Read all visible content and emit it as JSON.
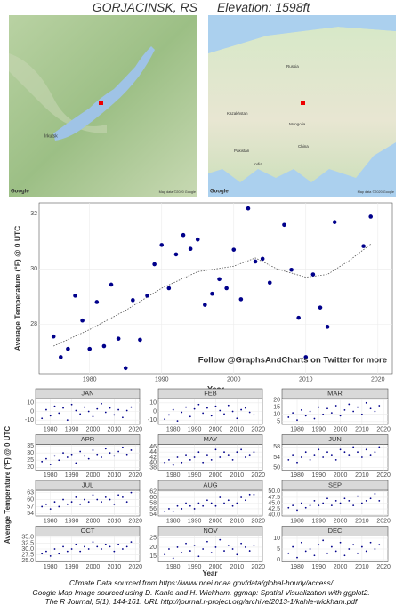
{
  "header": {
    "title": "GORJACINSK, RS",
    "elevation": "Elevation: 1598ft"
  },
  "maps": {
    "left": {
      "logo": "Google",
      "credit": "Map data ©2020 Google",
      "labels": [
        "Irkutsk"
      ]
    },
    "right": {
      "logo": "Google",
      "credit": "Map data ©2020 Google",
      "labels": [
        "Kazakhstan",
        "Mongolia",
        "China",
        "Pakistan",
        "India",
        "Russia"
      ]
    }
  },
  "facets": {
    "y_label": "Average Temperature (°F) @ 0 UTC",
    "x_label": "Year"
  },
  "footer": [
    "Climate Data sourced from https://www.ncei.noaa.gov/data/global-hourly/access/",
    "Google Map Image sourced using D. Kahle and H. Wickham. ggmap: Spatial Visualization with ggplot2.",
    "The R Journal, 5(1), 144-161. URL http://journal.r-project.org/archive/2013-1/kahle-wickham.pdf"
  ],
  "chart_data": [
    {
      "type": "scatter",
      "x_label": "Year",
      "y_label": "Average Temperature (°F) @ 0 UTC",
      "annotation": "Follow @GraphsAndCharts on Twitter for more",
      "color": "#00008b",
      "grid": true,
      "x": [
        1975,
        1976,
        1977,
        1978,
        1979,
        1980,
        1981,
        1982,
        1983,
        1984,
        1985,
        1986,
        1987,
        1988,
        1989,
        1990,
        1991,
        1992,
        1993,
        1994,
        1995,
        1996,
        1997,
        1998,
        1999,
        2000,
        2001,
        2002,
        2003,
        2004,
        2005,
        2007,
        2008,
        2009,
        2010,
        2011,
        2012,
        2013,
        2014,
        2018,
        2019
      ],
      "values": [
        27.55,
        26.8,
        27.1,
        29.03,
        28.13,
        27.1,
        28.8,
        27.2,
        29.43,
        27.47,
        26.4,
        28.87,
        27.43,
        29.03,
        30.17,
        30.87,
        29.3,
        30.53,
        31.23,
        30.73,
        31.07,
        28.7,
        29.1,
        29.63,
        29.3,
        30.7,
        28.9,
        32.2,
        30.27,
        30.37,
        29.5,
        31.6,
        29.97,
        28.23,
        26.8,
        29.8,
        28.6,
        27.9,
        31.7,
        30.83,
        31.9
      ],
      "trend": {
        "x": [
          1975,
          1980,
          1985,
          1990,
          1995,
          2000,
          2003,
          2006,
          2010,
          2013,
          2016,
          2019
        ],
        "values": [
          27.2,
          27.8,
          28.5,
          29.3,
          29.9,
          30.1,
          30.4,
          30.0,
          29.7,
          29.8,
          30.3,
          30.9
        ]
      },
      "xlim": [
        1973,
        2022
      ],
      "xticks": [
        1980,
        1990,
        2000,
        2010,
        2020
      ],
      "ylim": [
        26.2,
        32.4
      ],
      "yticks": [
        28,
        30,
        32
      ]
    },
    {
      "type": "scatter",
      "title": "JAN",
      "color": "#00008b",
      "x": [
        1976,
        1978,
        1980,
        1982,
        1984,
        1986,
        1988,
        1990,
        1992,
        1994,
        1996,
        1998,
        2000,
        2002,
        2004,
        2006,
        2008,
        2010,
        2012,
        2014,
        2016,
        2018
      ],
      "values": [
        -8,
        2,
        -5,
        6,
        -2,
        4,
        -10,
        8,
        1,
        -3,
        5,
        0,
        -6,
        3,
        9,
        -1,
        4,
        -4,
        2,
        -7,
        1,
        5
      ],
      "xlim": [
        1973,
        2022
      ],
      "xticks": [
        1980,
        1990,
        2000,
        2010,
        2020
      ],
      "ylim": [
        -15,
        15
      ],
      "yticks": [
        -10,
        0,
        10
      ]
    },
    {
      "type": "scatter",
      "title": "FEB",
      "color": "#00008b",
      "x": [
        1976,
        1978,
        1980,
        1982,
        1984,
        1986,
        1988,
        1990,
        1992,
        1994,
        1996,
        1998,
        2000,
        2002,
        2004,
        2006,
        2008,
        2010,
        2012,
        2014,
        2016,
        2018
      ],
      "values": [
        -9,
        -4,
        2,
        -11,
        -1,
        5,
        -6,
        3,
        8,
        -2,
        4,
        -5,
        6,
        1,
        -3,
        7,
        0,
        -8,
        2,
        4,
        -1,
        -4
      ],
      "xlim": [
        1973,
        2022
      ],
      "xticks": [
        1980,
        1990,
        2000,
        2010,
        2020
      ],
      "ylim": [
        -15,
        15
      ],
      "yticks": [
        -10,
        0,
        10
      ]
    },
    {
      "type": "scatter",
      "title": "MAR",
      "color": "#00008b",
      "x": [
        1976,
        1978,
        1980,
        1982,
        1984,
        1986,
        1988,
        1990,
        1992,
        1994,
        1996,
        1998,
        2000,
        2002,
        2004,
        2006,
        2008,
        2010,
        2012,
        2014,
        2016,
        2018
      ],
      "values": [
        8,
        11,
        6,
        13,
        9,
        12,
        7,
        15,
        10,
        14,
        11,
        16,
        9,
        13,
        17,
        12,
        15,
        10,
        18,
        14,
        12,
        16
      ],
      "xlim": [
        1973,
        2022
      ],
      "xticks": [
        1980,
        1990,
        2000,
        2010,
        2020
      ],
      "ylim": [
        3,
        21
      ],
      "yticks": [
        5,
        10,
        15,
        20
      ]
    },
    {
      "type": "scatter",
      "title": "APR",
      "color": "#00008b",
      "x": [
        1976,
        1978,
        1980,
        1982,
        1984,
        1986,
        1988,
        1990,
        1992,
        1994,
        1996,
        1998,
        2000,
        2002,
        2004,
        2006,
        2008,
        2010,
        2012,
        2014,
        2016,
        2018
      ],
      "values": [
        24,
        26,
        22,
        28,
        25,
        30,
        27,
        29,
        23,
        31,
        28,
        26,
        32,
        29,
        27,
        33,
        30,
        28,
        31,
        34,
        29,
        32
      ],
      "xlim": [
        1973,
        2022
      ],
      "xticks": [
        1980,
        1990,
        2000,
        2010,
        2020
      ],
      "ylim": [
        18,
        36
      ],
      "yticks": [
        20,
        25,
        30,
        35
      ]
    },
    {
      "type": "scatter",
      "title": "MAY",
      "color": "#00008b",
      "x": [
        1976,
        1978,
        1980,
        1982,
        1984,
        1986,
        1988,
        1990,
        1992,
        1994,
        1996,
        1998,
        2000,
        2002,
        2004,
        2006,
        2008,
        2010,
        2012,
        2014,
        2016,
        2018
      ],
      "values": [
        40,
        41,
        39,
        42,
        40,
        43,
        41,
        42,
        44,
        40,
        43,
        41,
        45,
        42,
        44,
        43,
        41,
        44,
        45,
        42,
        43,
        44
      ],
      "xlim": [
        1973,
        2022
      ],
      "xticks": [
        1980,
        1990,
        2000,
        2010,
        2020
      ],
      "ylim": [
        37,
        47
      ],
      "yticks": [
        38,
        40,
        42,
        44,
        46
      ]
    },
    {
      "type": "scatter",
      "title": "JUN",
      "color": "#00008b",
      "x": [
        1976,
        1978,
        1980,
        1982,
        1984,
        1986,
        1988,
        1990,
        1992,
        1994,
        1996,
        1998,
        2000,
        2002,
        2004,
        2006,
        2008,
        2010,
        2012,
        2014,
        2016,
        2018
      ],
      "values": [
        53,
        55,
        52,
        54,
        56,
        53,
        55,
        57,
        54,
        56,
        55,
        53,
        57,
        56,
        55,
        58,
        56,
        54,
        57,
        55,
        56,
        58
      ],
      "xlim": [
        1973,
        2022
      ],
      "xticks": [
        1980,
        1990,
        2000,
        2010,
        2020
      ],
      "ylim": [
        49,
        59
      ],
      "yticks": [
        50,
        54,
        58
      ]
    },
    {
      "type": "scatter",
      "title": "JUL",
      "color": "#00008b",
      "x": [
        1976,
        1978,
        1980,
        1982,
        1984,
        1986,
        1988,
        1990,
        1992,
        1994,
        1996,
        1998,
        2000,
        2002,
        2004,
        2006,
        2008,
        2010,
        2012,
        2014,
        2016,
        2018
      ],
      "values": [
        57,
        58,
        56,
        59,
        57,
        60,
        58,
        59,
        61,
        58,
        60,
        59,
        62,
        60,
        59,
        61,
        60,
        58,
        62,
        61,
        59,
        63
      ],
      "xlim": [
        1973,
        2022
      ],
      "xticks": [
        1980,
        1990,
        2000,
        2010,
        2020
      ],
      "ylim": [
        53,
        64
      ],
      "yticks": [
        54,
        57,
        60,
        63
      ]
    },
    {
      "type": "scatter",
      "title": "AUG",
      "color": "#00008b",
      "x": [
        1976,
        1978,
        1980,
        1982,
        1984,
        1986,
        1988,
        1990,
        1992,
        1994,
        1996,
        1998,
        2000,
        2002,
        2004,
        2006,
        2008,
        2010,
        2012,
        2014,
        2016,
        2018
      ],
      "values": [
        55,
        56,
        55,
        57,
        56,
        58,
        57,
        56,
        58,
        57,
        59,
        58,
        57,
        60,
        58,
        59,
        57,
        58,
        60,
        59,
        61,
        61
      ],
      "xlim": [
        1973,
        2022
      ],
      "xticks": [
        1980,
        1990,
        2000,
        2010,
        2020
      ],
      "ylim": [
        53.5,
        62.5
      ],
      "yticks": [
        54,
        56,
        58,
        60,
        62
      ]
    },
    {
      "type": "scatter",
      "title": "SEP",
      "color": "#00008b",
      "x": [
        1976,
        1978,
        1980,
        1982,
        1984,
        1986,
        1988,
        1990,
        1992,
        1994,
        1996,
        1998,
        2000,
        2002,
        2004,
        2006,
        2008,
        2010,
        2012,
        2014,
        2016,
        2018
      ],
      "values": [
        43,
        44,
        42,
        45,
        43,
        44,
        46,
        44,
        45,
        47,
        44,
        46,
        45,
        47,
        46,
        44,
        48,
        45,
        46,
        47,
        49,
        46
      ],
      "xlim": [
        1973,
        2022
      ],
      "xticks": [
        1980,
        1990,
        2000,
        2010,
        2020
      ],
      "ylim": [
        39.5,
        50.5
      ],
      "yticks": [
        {
          "value": 40,
          "label": "40.0"
        },
        42.5,
        {
          "value": 45,
          "label": "45.0"
        },
        47.5,
        {
          "value": 50,
          "label": "50.0"
        }
      ]
    },
    {
      "type": "scatter",
      "title": "OCT",
      "color": "#00008b",
      "x": [
        1976,
        1978,
        1980,
        1982,
        1984,
        1986,
        1988,
        1990,
        1992,
        1994,
        1996,
        1998,
        2000,
        2002,
        2004,
        2006,
        2008,
        2010,
        2012,
        2014,
        2016,
        2018
      ],
      "values": [
        28,
        29,
        27,
        30,
        28,
        31,
        29,
        30,
        32,
        29,
        31,
        30,
        33,
        31,
        30,
        32,
        31,
        29,
        32,
        30,
        31,
        33
      ],
      "xlim": [
        1973,
        2022
      ],
      "xticks": [
        1980,
        1990,
        2000,
        2010,
        2020
      ],
      "ylim": [
        24.5,
        35.5
      ],
      "yticks": [
        {
          "value": 25,
          "label": "25.0"
        },
        27.5,
        {
          "value": 30,
          "label": "30.0"
        },
        32.5,
        {
          "value": 35,
          "label": "35.0"
        }
      ]
    },
    {
      "type": "scatter",
      "title": "NOV",
      "color": "#00008b",
      "x": [
        1976,
        1978,
        1980,
        1982,
        1984,
        1986,
        1988,
        1990,
        1992,
        1994,
        1996,
        1998,
        2000,
        2002,
        2004,
        2006,
        2008,
        2010,
        2012,
        2014,
        2016,
        2018
      ],
      "values": [
        16,
        19,
        14,
        20,
        17,
        22,
        18,
        21,
        15,
        19,
        23,
        17,
        20,
        24,
        18,
        21,
        19,
        16,
        22,
        20,
        18,
        21
      ],
      "xlim": [
        1973,
        2022
      ],
      "xticks": [
        1980,
        1990,
        2000,
        2010,
        2020
      ],
      "ylim": [
        12,
        26
      ],
      "yticks": [
        15,
        20,
        25
      ]
    },
    {
      "type": "scatter",
      "title": "DEC",
      "color": "#00008b",
      "x": [
        1976,
        1978,
        1980,
        1982,
        1984,
        1986,
        1988,
        1990,
        1992,
        1994,
        1996,
        1998,
        2000,
        2002,
        2004,
        2006,
        2008,
        2010,
        2012,
        2014,
        2016,
        2018
      ],
      "values": [
        3,
        6,
        1,
        8,
        4,
        5,
        2,
        7,
        9,
        3,
        6,
        4,
        8,
        2,
        5,
        7,
        3,
        6,
        4,
        8,
        5,
        7
      ],
      "xlim": [
        1973,
        2022
      ],
      "xticks": [
        1980,
        1990,
        2000,
        2010,
        2020
      ],
      "ylim": [
        -1,
        11
      ],
      "yticks": [
        0,
        5,
        10
      ]
    }
  ]
}
